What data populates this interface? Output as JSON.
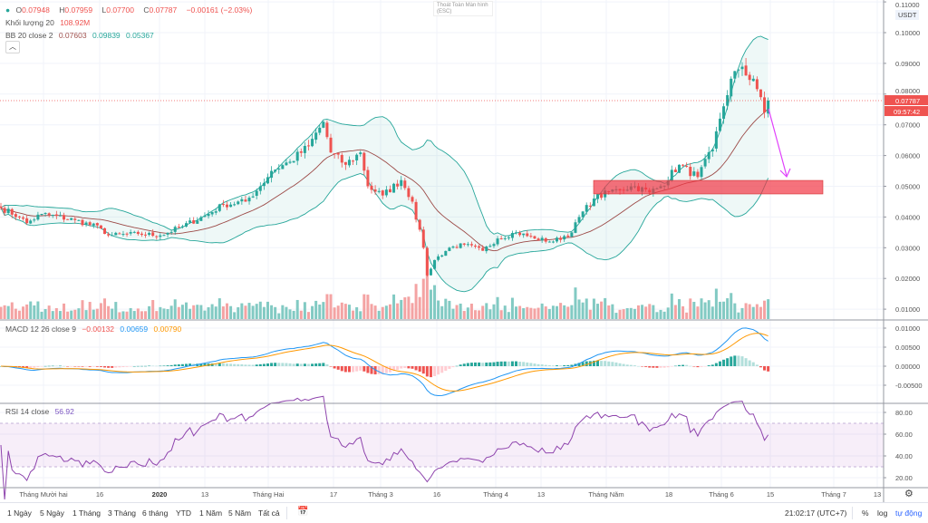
{
  "legend": {
    "ohlc": {
      "o_label": "O",
      "o": "0.07948",
      "h_label": "H",
      "h": "0.07959",
      "l_label": "L",
      "l": "0.07700",
      "c_label": "C",
      "c": "0.07787",
      "change": "−0.00161 (−2.03%)"
    },
    "volume": {
      "label": "Khối lượng 20",
      "value": "108.92M"
    },
    "bb": {
      "label": "BB 20 close 2",
      "basis": "0.07603",
      "upper": "0.09839",
      "lower": "0.05367"
    },
    "macd": {
      "label": "MACD 12 26 close 9",
      "hist": "−0.00132",
      "macd": "0.00659",
      "signal": "0.00790"
    },
    "rsi": {
      "label": "RSI 14 close",
      "value": "56.92"
    }
  },
  "fullscreen_hint": "Thoát Toàn Màn hình (ESC)",
  "currency": "USDT",
  "collapse_icon": "chevron-up-icon",
  "price_axis": {
    "ticks": [
      "0.11000",
      "0.10000",
      "0.09000",
      "0.08000",
      "0.07000",
      "0.06000",
      "0.05000",
      "0.04000",
      "0.03000",
      "0.02000",
      "0.01000"
    ],
    "last_price": "0.07787",
    "countdown": "09:57:42"
  },
  "macd_axis": {
    "ticks": [
      "0.01000",
      "0.00500",
      "0.00000",
      "-0.00500"
    ]
  },
  "rsi_axis": {
    "ticks": [
      "80.00",
      "60.00",
      "40.00",
      "20.00"
    ]
  },
  "time_axis": {
    "labels": [
      "Tháng Mười hai",
      "16",
      "2020",
      "13",
      "Tháng Hai",
      "17",
      "Tháng 3",
      "16",
      "Tháng 4",
      "13",
      "Tháng Năm",
      "18",
      "Tháng 6",
      "15",
      "Tháng 7",
      "13"
    ]
  },
  "bottom_bar": {
    "ranges": [
      "1 Ngày",
      "5 Ngày",
      "1 Tháng",
      "3 Tháng",
      "6 tháng",
      "YTD",
      "1 Năm",
      "5 Năm",
      "Tất cả"
    ],
    "time": "21:02:17 (UTC+7)",
    "percent": "%",
    "log": "log",
    "auto": "tự động"
  },
  "colors": {
    "up": "#26a69a",
    "down": "#ef5350",
    "bb": "#26a69a",
    "basis": "#9c4a47",
    "macd": "#2196f3",
    "signal": "#ff9800",
    "rsi": "#8e44ad",
    "zone": "#f23645",
    "arrow": "#e040fb"
  },
  "chart_data": {
    "type": "candlestick",
    "symbol_quote": "USDT",
    "price_range": [
      0.005,
      0.11
    ],
    "close_waypoints": [
      [
        0,
        0.043
      ],
      [
        5,
        0.04
      ],
      [
        7,
        0.038
      ],
      [
        11,
        0.041
      ],
      [
        20,
        0.039
      ],
      [
        27,
        0.0363
      ],
      [
        29,
        0.034
      ],
      [
        37,
        0.0345
      ],
      [
        43,
        0.034
      ],
      [
        49,
        0.037
      ],
      [
        56,
        0.041
      ],
      [
        60,
        0.044
      ],
      [
        66,
        0.045
      ],
      [
        70,
        0.05
      ],
      [
        73,
        0.055
      ],
      [
        78,
        0.058
      ],
      [
        83,
        0.063
      ],
      [
        87,
        0.071
      ],
      [
        89,
        0.061
      ],
      [
        93,
        0.057
      ],
      [
        97,
        0.061
      ],
      [
        99,
        0.05
      ],
      [
        103,
        0.047
      ],
      [
        108,
        0.052
      ],
      [
        111,
        0.045
      ],
      [
        114,
        0.03
      ],
      [
        115,
        0.021
      ],
      [
        117,
        0.026
      ],
      [
        121,
        0.03
      ],
      [
        125,
        0.031
      ],
      [
        130,
        0.029
      ],
      [
        134,
        0.033
      ],
      [
        139,
        0.035
      ],
      [
        144,
        0.033
      ],
      [
        149,
        0.032
      ],
      [
        154,
        0.035
      ],
      [
        156,
        0.04
      ],
      [
        160,
        0.046
      ],
      [
        166,
        0.049
      ],
      [
        171,
        0.05
      ],
      [
        175,
        0.048
      ],
      [
        178,
        0.05
      ],
      [
        183,
        0.057
      ],
      [
        188,
        0.053
      ],
      [
        192,
        0.062
      ],
      [
        194,
        0.072
      ],
      [
        197,
        0.085
      ],
      [
        199,
        0.088
      ],
      [
        203,
        0.085
      ],
      [
        205,
        0.079
      ],
      [
        206,
        0.074
      ],
      [
        207,
        0.07787
      ]
    ],
    "support_zone": [
      0.0475,
      0.0519
    ],
    "indicators": [
      "Volume 20",
      "BB 20 close 2",
      "MACD 12 26 9",
      "RSI 14"
    ],
    "rsi_band": [
      30,
      70
    ]
  }
}
